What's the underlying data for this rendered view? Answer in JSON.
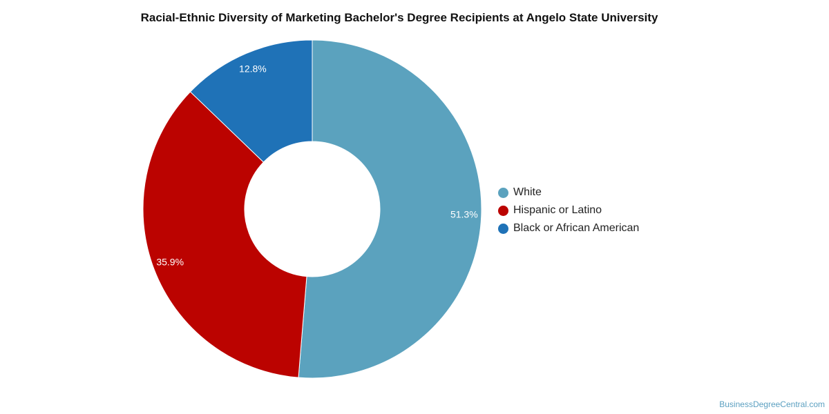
{
  "chart_data": {
    "type": "pie",
    "title": "Racial-Ethnic Diversity of Marketing Bachelor's Degree Recipients at Angelo State University",
    "categories": [
      "White",
      "Hispanic or Latino",
      "Black or African American"
    ],
    "values": [
      51.3,
      35.9,
      12.8
    ],
    "value_labels": [
      "51.3%",
      "35.9%",
      "12.8%"
    ],
    "colors": [
      "#5ba2be",
      "#bb0300",
      "#1f72b7"
    ],
    "donut": true,
    "legend_position": "right"
  },
  "watermark": "BusinessDegreeCentral.com"
}
